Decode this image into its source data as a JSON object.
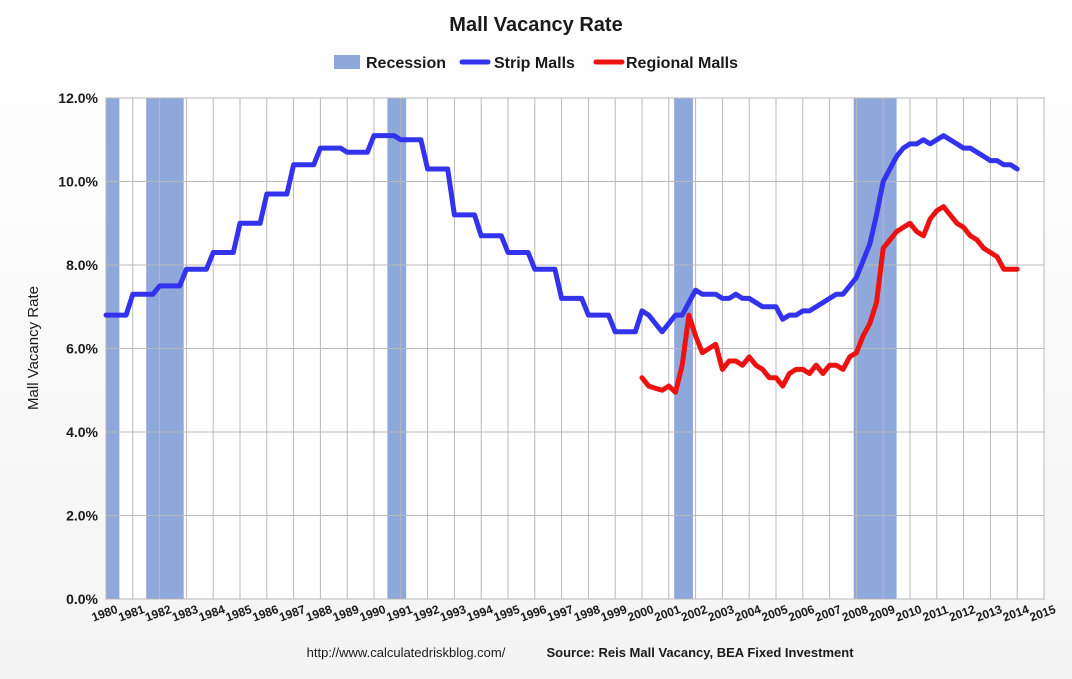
{
  "chart_data": {
    "type": "line",
    "title": "Mall Vacancy Rate",
    "ylabel": "Mall Vacancy Rate",
    "xlabel": "",
    "ylim": [
      0,
      12
    ],
    "xlim": [
      1980,
      2015
    ],
    "y_ticks": [
      "0.0%",
      "2.0%",
      "4.0%",
      "6.0%",
      "8.0%",
      "10.0%",
      "12.0%"
    ],
    "x_ticks": [
      "1980",
      "1981",
      "1982",
      "1983",
      "1984",
      "1985",
      "1986",
      "1987",
      "1988",
      "1989",
      "1990",
      "1991",
      "1992",
      "1993",
      "1994",
      "1995",
      "1996",
      "1997",
      "1998",
      "1999",
      "2000",
      "2001",
      "2002",
      "2003",
      "2004",
      "2005",
      "2006",
      "2007",
      "2008",
      "2009",
      "2010",
      "2011",
      "2012",
      "2013",
      "2014",
      "2015"
    ],
    "grid": true,
    "legend": {
      "placement": "top",
      "items": [
        {
          "label": "Recession",
          "kind": "band",
          "color": "#8ea8dc"
        },
        {
          "label": "Strip Malls",
          "kind": "line",
          "color": "#3333ee"
        },
        {
          "label": "Regional Malls",
          "kind": "line",
          "color": "#ee1111"
        }
      ]
    },
    "recessions": [
      [
        1980.0,
        1980.5
      ],
      [
        1981.5,
        1982.9
      ],
      [
        1990.5,
        1991.2
      ],
      [
        2001.2,
        2001.9
      ],
      [
        2007.9,
        2009.5
      ]
    ],
    "series": [
      {
        "name": "Strip Malls",
        "color": "#3333ee",
        "points": [
          [
            1980.0,
            6.8
          ],
          [
            1980.75,
            6.8
          ],
          [
            1981.0,
            7.3
          ],
          [
            1981.75,
            7.3
          ],
          [
            1982.0,
            7.5
          ],
          [
            1982.75,
            7.5
          ],
          [
            1983.0,
            7.9
          ],
          [
            1983.75,
            7.9
          ],
          [
            1984.0,
            8.3
          ],
          [
            1984.75,
            8.3
          ],
          [
            1985.0,
            9.0
          ],
          [
            1985.75,
            9.0
          ],
          [
            1986.0,
            9.7
          ],
          [
            1986.75,
            9.7
          ],
          [
            1987.0,
            10.4
          ],
          [
            1987.75,
            10.4
          ],
          [
            1988.0,
            10.8
          ],
          [
            1988.75,
            10.8
          ],
          [
            1989.0,
            10.7
          ],
          [
            1989.75,
            10.7
          ],
          [
            1990.0,
            11.1
          ],
          [
            1990.75,
            11.1
          ],
          [
            1991.0,
            11.0
          ],
          [
            1991.75,
            11.0
          ],
          [
            1992.0,
            10.3
          ],
          [
            1992.75,
            10.3
          ],
          [
            1993.0,
            9.2
          ],
          [
            1993.75,
            9.2
          ],
          [
            1994.0,
            8.7
          ],
          [
            1994.75,
            8.7
          ],
          [
            1995.0,
            8.3
          ],
          [
            1995.75,
            8.3
          ],
          [
            1996.0,
            7.9
          ],
          [
            1996.75,
            7.9
          ],
          [
            1997.0,
            7.2
          ],
          [
            1997.75,
            7.2
          ],
          [
            1998.0,
            6.8
          ],
          [
            1998.75,
            6.8
          ],
          [
            1999.0,
            6.4
          ],
          [
            1999.75,
            6.4
          ],
          [
            2000.0,
            6.9
          ],
          [
            2000.25,
            6.8
          ],
          [
            2000.5,
            6.6
          ],
          [
            2000.75,
            6.4
          ],
          [
            2001.0,
            6.6
          ],
          [
            2001.25,
            6.8
          ],
          [
            2001.5,
            6.8
          ],
          [
            2001.75,
            7.1
          ],
          [
            2002.0,
            7.4
          ],
          [
            2002.25,
            7.3
          ],
          [
            2002.5,
            7.3
          ],
          [
            2002.75,
            7.3
          ],
          [
            2003.0,
            7.2
          ],
          [
            2003.25,
            7.2
          ],
          [
            2003.5,
            7.3
          ],
          [
            2003.75,
            7.2
          ],
          [
            2004.0,
            7.2
          ],
          [
            2004.25,
            7.1
          ],
          [
            2004.5,
            7.0
          ],
          [
            2004.75,
            7.0
          ],
          [
            2005.0,
            7.0
          ],
          [
            2005.25,
            6.7
          ],
          [
            2005.5,
            6.8
          ],
          [
            2005.75,
            6.8
          ],
          [
            2006.0,
            6.9
          ],
          [
            2006.25,
            6.9
          ],
          [
            2006.5,
            7.0
          ],
          [
            2006.75,
            7.1
          ],
          [
            2007.0,
            7.2
          ],
          [
            2007.25,
            7.3
          ],
          [
            2007.5,
            7.3
          ],
          [
            2007.75,
            7.5
          ],
          [
            2008.0,
            7.7
          ],
          [
            2008.25,
            8.1
          ],
          [
            2008.5,
            8.5
          ],
          [
            2008.75,
            9.2
          ],
          [
            2009.0,
            10.0
          ],
          [
            2009.25,
            10.3
          ],
          [
            2009.5,
            10.6
          ],
          [
            2009.75,
            10.8
          ],
          [
            2010.0,
            10.9
          ],
          [
            2010.25,
            10.9
          ],
          [
            2010.5,
            11.0
          ],
          [
            2010.75,
            10.9
          ],
          [
            2011.0,
            11.0
          ],
          [
            2011.25,
            11.1
          ],
          [
            2011.5,
            11.0
          ],
          [
            2011.75,
            10.9
          ],
          [
            2012.0,
            10.8
          ],
          [
            2012.25,
            10.8
          ],
          [
            2012.5,
            10.7
          ],
          [
            2012.75,
            10.6
          ],
          [
            2013.0,
            10.5
          ],
          [
            2013.25,
            10.5
          ],
          [
            2013.5,
            10.4
          ],
          [
            2013.75,
            10.4
          ],
          [
            2014.0,
            10.3
          ]
        ]
      },
      {
        "name": "Regional Malls",
        "color": "#ee1111",
        "points": [
          [
            2000.0,
            5.3
          ],
          [
            2000.25,
            5.1
          ],
          [
            2000.5,
            5.05
          ],
          [
            2000.75,
            5.0
          ],
          [
            2001.0,
            5.1
          ],
          [
            2001.25,
            4.95
          ],
          [
            2001.5,
            5.6
          ],
          [
            2001.75,
            6.8
          ],
          [
            2002.0,
            6.3
          ],
          [
            2002.25,
            5.9
          ],
          [
            2002.5,
            6.0
          ],
          [
            2002.75,
            6.1
          ],
          [
            2003.0,
            5.5
          ],
          [
            2003.25,
            5.7
          ],
          [
            2003.5,
            5.7
          ],
          [
            2003.75,
            5.6
          ],
          [
            2004.0,
            5.8
          ],
          [
            2004.25,
            5.6
          ],
          [
            2004.5,
            5.5
          ],
          [
            2004.75,
            5.3
          ],
          [
            2005.0,
            5.3
          ],
          [
            2005.25,
            5.1
          ],
          [
            2005.5,
            5.4
          ],
          [
            2005.75,
            5.5
          ],
          [
            2006.0,
            5.5
          ],
          [
            2006.25,
            5.4
          ],
          [
            2006.5,
            5.6
          ],
          [
            2006.75,
            5.4
          ],
          [
            2007.0,
            5.6
          ],
          [
            2007.25,
            5.6
          ],
          [
            2007.5,
            5.5
          ],
          [
            2007.75,
            5.8
          ],
          [
            2008.0,
            5.9
          ],
          [
            2008.25,
            6.3
          ],
          [
            2008.5,
            6.6
          ],
          [
            2008.75,
            7.1
          ],
          [
            2009.0,
            8.4
          ],
          [
            2009.25,
            8.6
          ],
          [
            2009.5,
            8.8
          ],
          [
            2009.75,
            8.9
          ],
          [
            2010.0,
            9.0
          ],
          [
            2010.25,
            8.8
          ],
          [
            2010.5,
            8.7
          ],
          [
            2010.75,
            9.1
          ],
          [
            2011.0,
            9.3
          ],
          [
            2011.25,
            9.4
          ],
          [
            2011.5,
            9.2
          ],
          [
            2011.75,
            9.0
          ],
          [
            2012.0,
            8.9
          ],
          [
            2012.25,
            8.7
          ],
          [
            2012.5,
            8.6
          ],
          [
            2012.75,
            8.4
          ],
          [
            2013.0,
            8.3
          ],
          [
            2013.25,
            8.2
          ],
          [
            2013.5,
            7.9
          ],
          [
            2013.75,
            7.9
          ],
          [
            2014.0,
            7.9
          ]
        ]
      }
    ],
    "footer": {
      "url": "http://www.calculatedriskblog.com/",
      "source": "Source: Reis Mall Vacancy, BEA Fixed Investment"
    }
  }
}
